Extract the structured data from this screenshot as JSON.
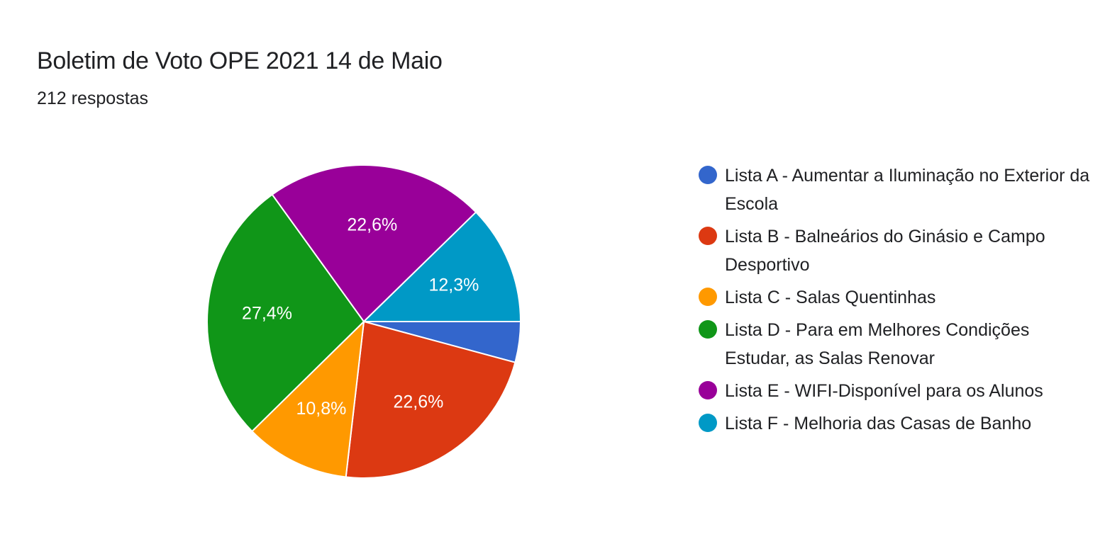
{
  "title": "Boletim de Voto OPE 2021 14 de Maio",
  "subtitle": "212 respostas",
  "chart_data": {
    "type": "pie",
    "legend_position": "right",
    "slices": [
      {
        "label": "Lista A - Aumentar a Iluminação no Exterior da Escola",
        "value": 4.2,
        "display": "",
        "color": "#3366cc"
      },
      {
        "label": "Lista B - Balneários do Ginásio e Campo Desportivo",
        "value": 22.6,
        "display": "22,6%",
        "color": "#dc3912"
      },
      {
        "label": "Lista C - Salas Quentinhas",
        "value": 10.8,
        "display": "10,8%",
        "color": "#ff9900"
      },
      {
        "label": "Lista D - Para em Melhores Condições Estudar, as Salas Renovar",
        "value": 27.4,
        "display": "27,4%",
        "color": "#109618"
      },
      {
        "label": "Lista E - WIFI-Disponível para os Alunos",
        "value": 22.6,
        "display": "22,6%",
        "color": "#990099"
      },
      {
        "label": "Lista F - Melhoria das Casas de Banho",
        "value": 12.3,
        "display": "12,3%",
        "color": "#0099c6"
      }
    ]
  }
}
